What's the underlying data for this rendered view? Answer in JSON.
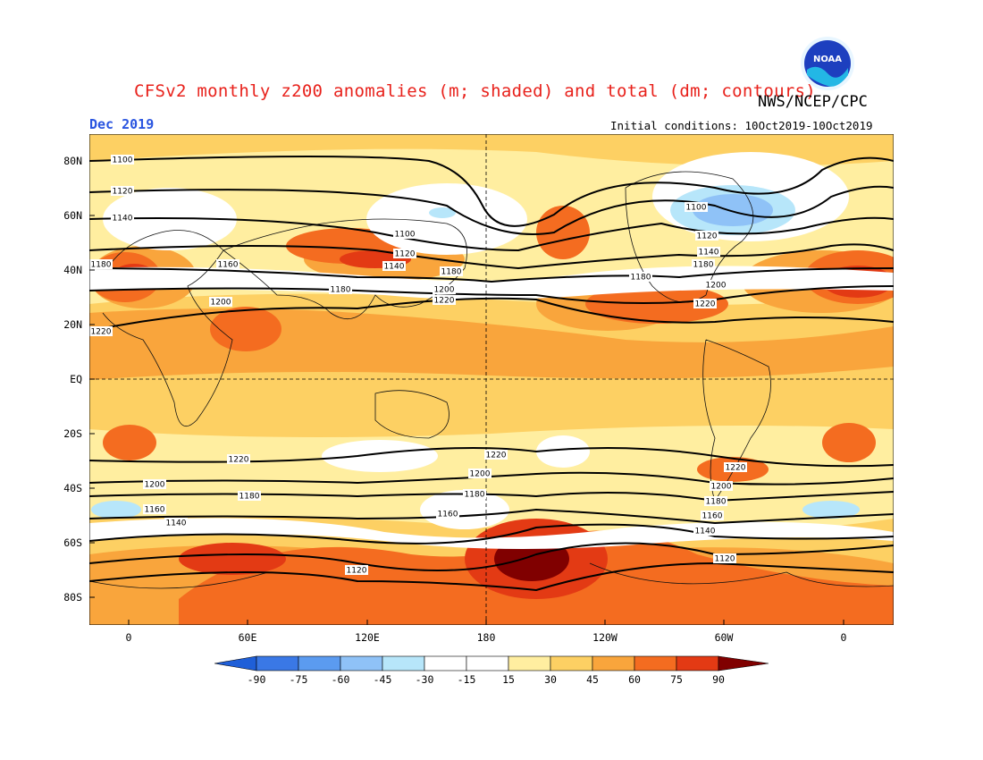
{
  "header": {
    "title": "CFSv2 monthly z200 anomalies (m; shaded) and total (dm; contours)",
    "agency": "NWS/NCEP/CPC",
    "month": "Dec 2019",
    "initial_conditions": "Initial conditions: 10Oct2019-10Oct2019",
    "logo_text": "NOAA"
  },
  "axes": {
    "lat_labels": [
      "80N",
      "60N",
      "40N",
      "20N",
      "EQ",
      "20S",
      "40S",
      "60S",
      "80S"
    ],
    "lon_labels": [
      "0",
      "60E",
      "120E",
      "180",
      "120W",
      "60W",
      "0"
    ]
  },
  "colorbar": {
    "labels": [
      "-90",
      "-75",
      "-60",
      "-45",
      "-30",
      "-15",
      "15",
      "30",
      "45",
      "60",
      "75",
      "90"
    ],
    "colors": [
      "#1f5fd8",
      "#3a78e6",
      "#5b9bf0",
      "#8fc2f7",
      "#b7e6fa",
      "#ffffff",
      "#ffeea0",
      "#fdd063",
      "#f9a53c",
      "#f46c20",
      "#e33a14",
      "#b80f0a",
      "#800000"
    ]
  },
  "contour_labels": [
    "1100",
    "1120",
    "1140",
    "1160",
    "1180",
    "1200",
    "1220"
  ]
}
